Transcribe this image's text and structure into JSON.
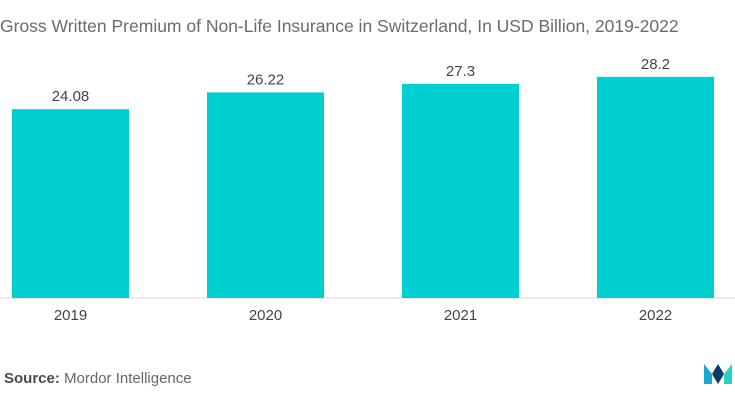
{
  "chart_data": {
    "type": "bar",
    "title": "Gross Written Premium of Non-Life Insurance in Switzerland, In USD Billion, 2019-2022",
    "categories": [
      "2019",
      "2020",
      "2021",
      "2022"
    ],
    "values": [
      24.08,
      26.22,
      27.3,
      28.2
    ],
    "value_labels": [
      "24.08",
      "26.22",
      "27.3",
      "28.2"
    ],
    "ylim": [
      0,
      38
    ],
    "grid": false,
    "bar_color": "#00cfd1"
  },
  "footer": {
    "source_label": "Source:",
    "source_name": "Mordor Intelligence"
  },
  "logo": {
    "icon": "mordor-intelligence-logo",
    "colors": [
      "#1aa6d6",
      "#0d3b66",
      "#22d3c5"
    ]
  }
}
